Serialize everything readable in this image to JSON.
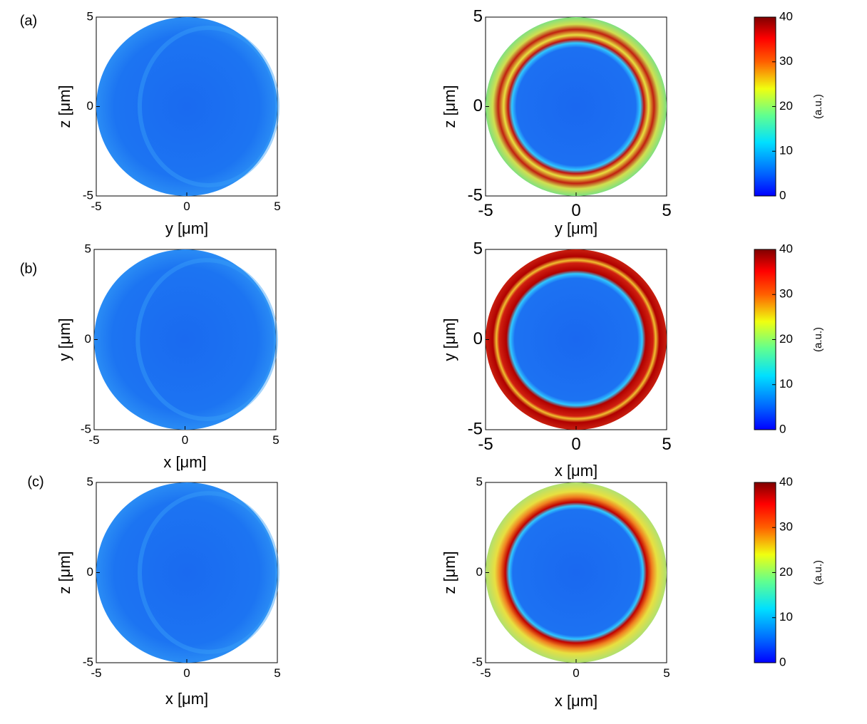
{
  "chart_data": [
    {
      "type": "heatmap",
      "annotation": "(a)",
      "xlabel": "y [μm]",
      "ylabel": "z [μm]",
      "xlim": [
        -5,
        5
      ],
      "ylim": [
        -5,
        5
      ],
      "xticks": [
        -5,
        0,
        5
      ],
      "yticks": [
        -5,
        0,
        5
      ],
      "colormap": "jet"
    },
    {
      "type": "heatmap",
      "xlabel": "y [μm]",
      "ylabel": "z [μm]",
      "xlim": [
        -5,
        5
      ],
      "ylim": [
        -5,
        5
      ],
      "xticks": [
        -5,
        0,
        5
      ],
      "yticks": [
        -5,
        0,
        5
      ],
      "colormap": "jet"
    },
    {
      "type": "colorbar",
      "label": "(a.u.)",
      "ylim": [
        0,
        40
      ],
      "yticks": [
        0,
        10,
        20,
        30,
        40
      ],
      "colormap": "jet"
    },
    {
      "type": "heatmap",
      "annotation": "(b)",
      "xlabel": "x [μm]",
      "ylabel": "y [μm]",
      "xlim": [
        -5,
        5
      ],
      "ylim": [
        -5,
        5
      ],
      "xticks": [
        -5,
        0,
        5
      ],
      "yticks": [
        -5,
        0,
        5
      ],
      "colormap": "jet"
    },
    {
      "type": "heatmap",
      "xlabel": "x [μm]",
      "ylabel": "y [μm]",
      "xlim": [
        -5,
        5
      ],
      "ylim": [
        -5,
        5
      ],
      "xticks": [
        -5,
        0,
        5
      ],
      "yticks": [
        -5,
        0,
        5
      ],
      "colormap": "jet"
    },
    {
      "type": "colorbar",
      "label": "(a.u.)",
      "ylim": [
        0,
        40
      ],
      "yticks": [
        0,
        10,
        20,
        30,
        40
      ],
      "colormap": "jet"
    },
    {
      "type": "heatmap",
      "annotation": "(c)",
      "xlabel": "x [μm]",
      "ylabel": "z [μm]",
      "xlim": [
        -5,
        5
      ],
      "ylim": [
        -5,
        5
      ],
      "xticks": [
        -5,
        0,
        5
      ],
      "yticks": [
        -5,
        0,
        5
      ],
      "colormap": "jet"
    },
    {
      "type": "heatmap",
      "xlabel": "x [μm]",
      "ylabel": "z [μm]",
      "xlim": [
        -5,
        5
      ],
      "ylim": [
        -5,
        5
      ],
      "xticks": [
        -5,
        0,
        5
      ],
      "yticks": [
        -5,
        0,
        5
      ],
      "colormap": "jet"
    },
    {
      "type": "colorbar",
      "label": "(a.u.)",
      "ylim": [
        0,
        40
      ],
      "yticks": [
        0,
        10,
        20,
        30,
        40
      ],
      "colormap": "jet"
    }
  ]
}
